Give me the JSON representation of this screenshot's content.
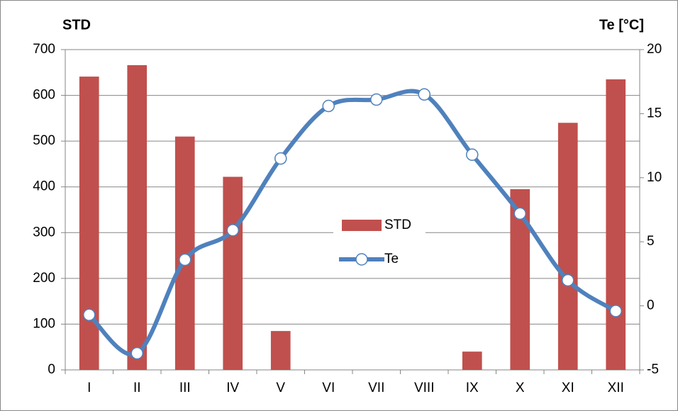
{
  "chart_data": {
    "type": "bar-line",
    "y_label": "STD",
    "y2_label": "Te [°C]",
    "categories": [
      "I",
      "II",
      "III",
      "IV",
      "V",
      "VI",
      "VII",
      "VIII",
      "IX",
      "X",
      "XI",
      "XII"
    ],
    "series": [
      {
        "name": "STD",
        "type": "bar",
        "color": "#c0504d",
        "values": [
          641,
          666,
          510,
          422,
          85,
          0,
          0,
          0,
          40,
          395,
          540,
          635
        ]
      },
      {
        "name": "Te",
        "type": "line",
        "axis": "y2",
        "color": "#4f81bd",
        "values": [
          -0.7,
          -3.7,
          3.6,
          5.9,
          11.5,
          15.6,
          16.1,
          16.5,
          11.8,
          7.2,
          2.0,
          -0.4
        ]
      }
    ],
    "ylim": [
      0,
      700
    ],
    "yticks": [
      0,
      100,
      200,
      300,
      400,
      500,
      600,
      700
    ],
    "y2lim": [
      -5,
      20
    ],
    "y2ticks": [
      -5,
      0,
      5,
      10,
      15,
      20
    ],
    "grid": true,
    "legend": "center"
  }
}
